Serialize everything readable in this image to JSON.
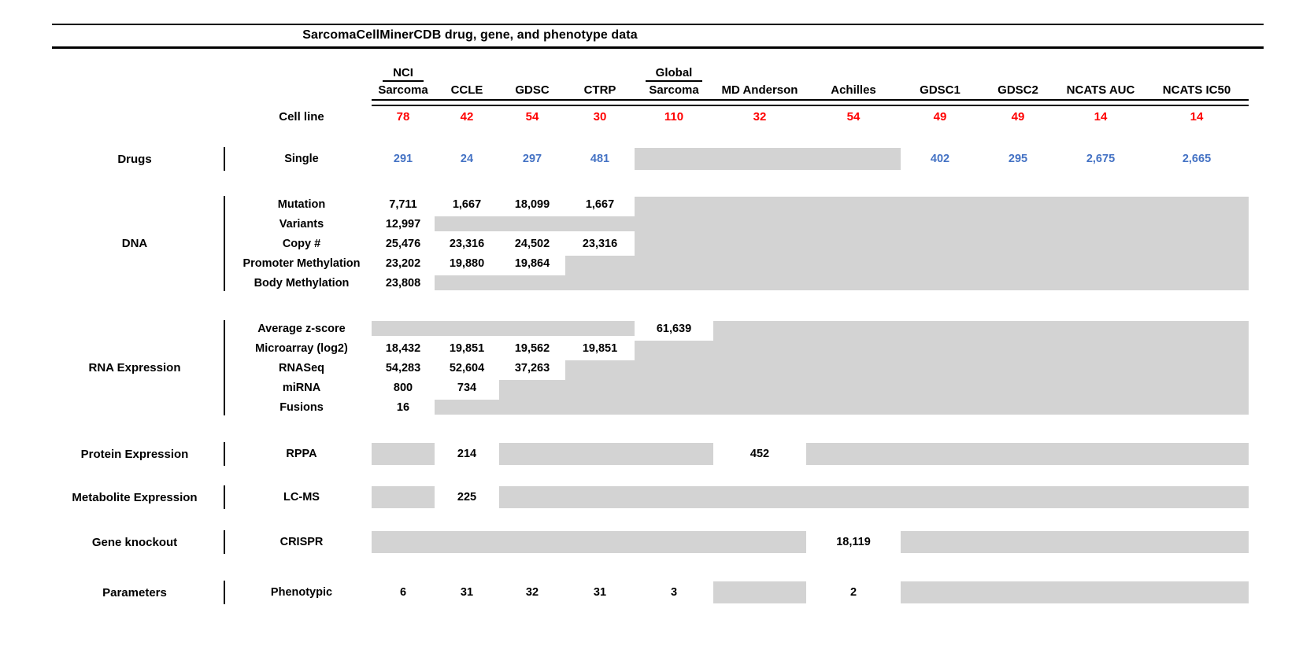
{
  "title": "SarcomaCellMinerCDB drug, gene, and phenotype data",
  "colors": {
    "count_red": "#ff0000",
    "drug_blue": "#4472c4",
    "box_gray": "#d3d3d3"
  },
  "header": {
    "cell_line_label": "Cell line"
  },
  "columns": [
    {
      "top": "NCI",
      "label": "Sarcoma",
      "count": "78"
    },
    {
      "label": "CCLE",
      "count": "42"
    },
    {
      "label": "GDSC",
      "count": "54"
    },
    {
      "label": "CTRP",
      "count": "30"
    },
    {
      "top": "Global",
      "label": "Sarcoma",
      "count": "110"
    },
    {
      "label": "MD Anderson",
      "count": "32"
    },
    {
      "label": "Achilles",
      "count": "54"
    },
    {
      "label": "GDSC1",
      "count": "49"
    },
    {
      "label": "GDSC2",
      "count": "49"
    },
    {
      "label": "NCATS AUC",
      "count": "14"
    },
    {
      "label": "NCATS IC50",
      "count": "14"
    }
  ],
  "sections": [
    {
      "group": "Drugs",
      "accent": "blue",
      "rows": [
        {
          "label": "Single",
          "cells": [
            "291",
            "24",
            "297",
            "481",
            {
              "box": 1
            },
            {
              "box": 1
            },
            {
              "box": 1
            },
            "402",
            "295",
            "2,675",
            "2,665"
          ]
        }
      ]
    },
    {
      "group": "DNA",
      "rows": [
        {
          "label": "Mutation",
          "cells": [
            "7,711",
            "1,667",
            "18,099",
            "1,667",
            {
              "box": 5
            },
            {
              "box": 5
            },
            {
              "box": 5
            },
            {
              "box": 5
            },
            {
              "box": 5
            },
            {
              "box": 5
            },
            {
              "box": 5
            }
          ]
        },
        {
          "label": "Variants",
          "cells": [
            "12,997",
            {
              "box": 1
            },
            {
              "box": 1
            },
            {
              "box": 1
            },
            null,
            null,
            null,
            null,
            null,
            null,
            null
          ]
        },
        {
          "label": "Copy #",
          "cells": [
            "25,476",
            "23,316",
            "24,502",
            "23,316",
            null,
            null,
            null,
            null,
            null,
            null,
            null
          ]
        },
        {
          "label": "Promoter Methylation",
          "cells": [
            "23,202",
            "19,880",
            "19,864",
            {
              "box": 2
            },
            null,
            null,
            null,
            null,
            null,
            null,
            null
          ]
        },
        {
          "label": "Body Methylation",
          "cells": [
            "23,808",
            {
              "box": 1
            },
            {
              "box": 1
            },
            null,
            null,
            null,
            null,
            null,
            null,
            null,
            null
          ]
        }
      ]
    },
    {
      "group": "RNA Expression",
      "rows": [
        {
          "label": "Average z-score",
          "cells": [
            {
              "box": 1
            },
            {
              "box": 1
            },
            {
              "box": 1
            },
            {
              "box": 1
            },
            "61,639",
            {
              "box": 5
            },
            {
              "box": 5
            },
            {
              "box": 5
            },
            {
              "box": 5
            },
            {
              "box": 5
            },
            {
              "box": 5
            }
          ]
        },
        {
          "label": "Microarray (log2)",
          "cells": [
            "18,432",
            "19,851",
            "19,562",
            "19,851",
            {
              "box": 4
            },
            null,
            null,
            null,
            null,
            null,
            null
          ]
        },
        {
          "label": "RNASeq",
          "cells": [
            "54,283",
            "52,604",
            "37,263",
            {
              "box": 3
            },
            null,
            null,
            null,
            null,
            null,
            null,
            null
          ]
        },
        {
          "label": "miRNA",
          "cells": [
            "800",
            "734",
            {
              "box": 2
            },
            null,
            null,
            null,
            null,
            null,
            null,
            null,
            null
          ]
        },
        {
          "label": "Fusions",
          "cells": [
            "16",
            {
              "box": 1
            },
            null,
            null,
            null,
            null,
            null,
            null,
            null,
            null,
            null
          ]
        }
      ]
    },
    {
      "group": "Protein Expression",
      "rows": [
        {
          "label": "RPPA",
          "cells": [
            {
              "box": 1
            },
            "214",
            {
              "box": 1
            },
            {
              "box": 1
            },
            {
              "box": 1
            },
            "452",
            {
              "box": 1
            },
            {
              "box": 1
            },
            {
              "box": 1
            },
            {
              "box": 1
            },
            {
              "box": 1
            }
          ]
        }
      ]
    },
    {
      "group": "Metabolite Expression",
      "rows": [
        {
          "label": "LC-MS",
          "cells": [
            {
              "box": 1
            },
            "225",
            {
              "box": 1
            },
            {
              "box": 1
            },
            {
              "box": 1
            },
            {
              "box": 1
            },
            {
              "box": 1
            },
            {
              "box": 1
            },
            {
              "box": 1
            },
            {
              "box": 1
            },
            {
              "box": 1
            }
          ]
        }
      ]
    },
    {
      "group": "Gene knockout",
      "rows": [
        {
          "label": "CRISPR",
          "cells": [
            {
              "box": 1
            },
            {
              "box": 1
            },
            {
              "box": 1
            },
            {
              "box": 1
            },
            {
              "box": 1
            },
            {
              "box": 1
            },
            "18,119",
            {
              "box": 1
            },
            {
              "box": 1
            },
            {
              "box": 1
            },
            {
              "box": 1
            }
          ]
        }
      ]
    },
    {
      "group": "Parameters",
      "rows": [
        {
          "label": "Phenotypic",
          "cells": [
            "6",
            "31",
            "32",
            "31",
            "3",
            {
              "box": 1
            },
            "2",
            {
              "box": 1
            },
            {
              "box": 1
            },
            {
              "box": 1
            },
            {
              "box": 1
            }
          ]
        }
      ]
    }
  ],
  "chart_data": {
    "type": "table",
    "title": "SarcomaCellMinerCDB drug, gene, and phenotype data",
    "columns": [
      "NCI Sarcoma",
      "CCLE",
      "GDSC",
      "CTRP",
      "Global Sarcoma",
      "MD Anderson",
      "Achilles",
      "GDSC1",
      "GDSC2",
      "NCATS AUC",
      "NCATS IC50"
    ],
    "cell_line_counts": [
      78,
      42,
      54,
      30,
      110,
      32,
      54,
      49,
      49,
      14,
      14
    ],
    "note": "null values are rendered as gray boxes (no data)",
    "rows": [
      {
        "group": "Drugs",
        "label": "Single",
        "values": [
          291,
          24,
          297,
          481,
          null,
          null,
          null,
          402,
          295,
          2675,
          2665
        ]
      },
      {
        "group": "DNA",
        "label": "Mutation",
        "values": [
          7711,
          1667,
          18099,
          1667,
          null,
          null,
          null,
          null,
          null,
          null,
          null
        ]
      },
      {
        "group": "DNA",
        "label": "Variants",
        "values": [
          12997,
          null,
          null,
          null,
          null,
          null,
          null,
          null,
          null,
          null,
          null
        ]
      },
      {
        "group": "DNA",
        "label": "Copy #",
        "values": [
          25476,
          23316,
          24502,
          23316,
          null,
          null,
          null,
          null,
          null,
          null,
          null
        ]
      },
      {
        "group": "DNA",
        "label": "Promoter Methylation",
        "values": [
          23202,
          19880,
          19864,
          null,
          null,
          null,
          null,
          null,
          null,
          null,
          null
        ]
      },
      {
        "group": "DNA",
        "label": "Body Methylation",
        "values": [
          23808,
          null,
          null,
          null,
          null,
          null,
          null,
          null,
          null,
          null,
          null
        ]
      },
      {
        "group": "RNA Expression",
        "label": "Average z-score",
        "values": [
          null,
          null,
          null,
          null,
          61639,
          null,
          null,
          null,
          null,
          null,
          null
        ]
      },
      {
        "group": "RNA Expression",
        "label": "Microarray (log2)",
        "values": [
          18432,
          19851,
          19562,
          19851,
          null,
          null,
          null,
          null,
          null,
          null,
          null
        ]
      },
      {
        "group": "RNA Expression",
        "label": "RNASeq",
        "values": [
          54283,
          52604,
          37263,
          null,
          null,
          null,
          null,
          null,
          null,
          null,
          null
        ]
      },
      {
        "group": "RNA Expression",
        "label": "miRNA",
        "values": [
          800,
          734,
          null,
          null,
          null,
          null,
          null,
          null,
          null,
          null,
          null
        ]
      },
      {
        "group": "RNA Expression",
        "label": "Fusions",
        "values": [
          16,
          null,
          null,
          null,
          null,
          null,
          null,
          null,
          null,
          null,
          null
        ]
      },
      {
        "group": "Protein Expression",
        "label": "RPPA",
        "values": [
          null,
          214,
          null,
          null,
          null,
          452,
          null,
          null,
          null,
          null,
          null
        ]
      },
      {
        "group": "Metabolite Expression",
        "label": "LC-MS",
        "values": [
          null,
          225,
          null,
          null,
          null,
          null,
          null,
          null,
          null,
          null,
          null
        ]
      },
      {
        "group": "Gene knockout",
        "label": "CRISPR",
        "values": [
          null,
          null,
          null,
          null,
          null,
          null,
          18119,
          null,
          null,
          null,
          null
        ]
      },
      {
        "group": "Parameters",
        "label": "Phenotypic",
        "values": [
          6,
          31,
          32,
          31,
          3,
          null,
          2,
          null,
          null,
          null,
          null
        ]
      }
    ]
  }
}
